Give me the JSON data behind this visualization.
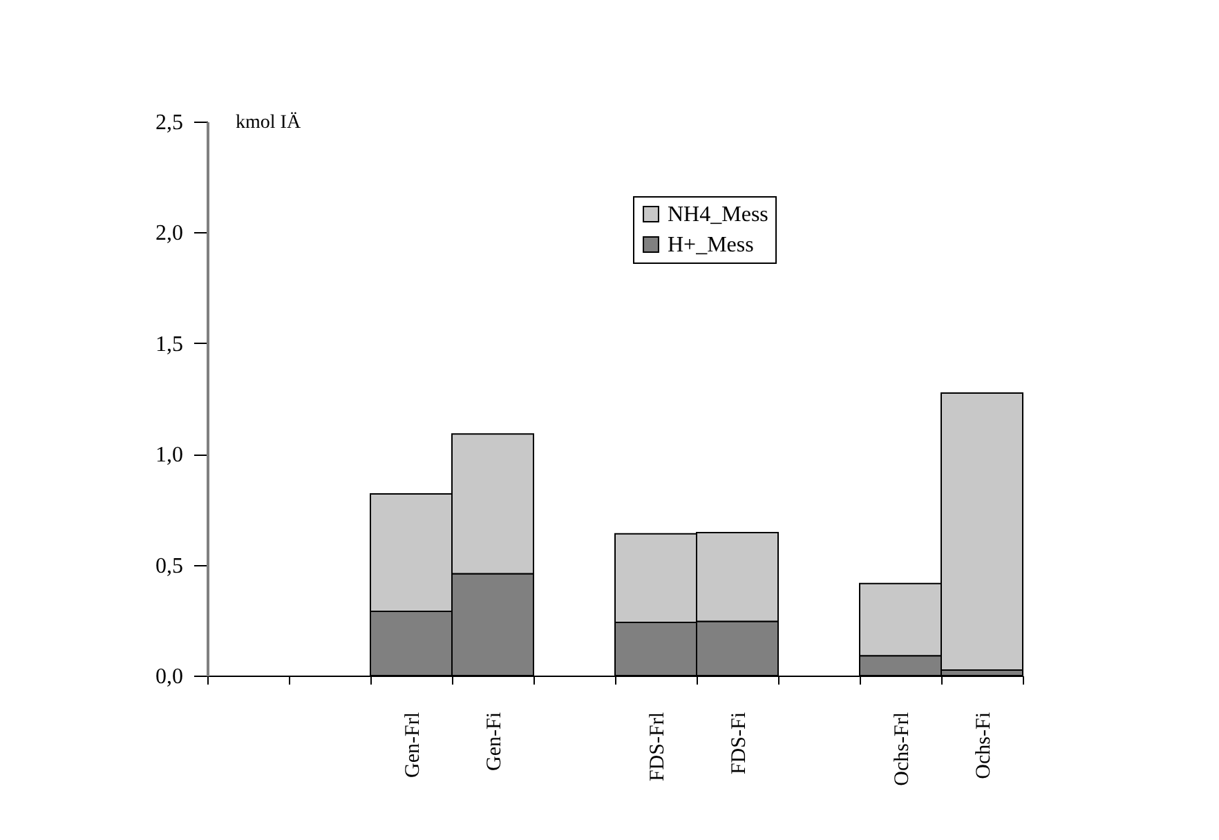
{
  "chart_data": {
    "type": "bar",
    "stacked": true,
    "ylabel": "kmol IÄ",
    "categories": [
      null,
      null,
      "Gen-Frl",
      "Gen-Fi",
      null,
      "FDS-Frl",
      "FDS-Fi",
      null,
      "Ochs-Frl",
      "Ochs-Fi"
    ],
    "series": [
      {
        "name": "H+_Mess",
        "color": "#808080",
        "values": [
          null,
          null,
          0.29,
          0.46,
          null,
          0.24,
          0.245,
          null,
          0.09,
          0.025
        ]
      },
      {
        "name": "NH4_Mess",
        "color": "#c8c8c8",
        "values": [
          null,
          null,
          0.53,
          0.63,
          null,
          0.4,
          0.4,
          null,
          0.325,
          1.25
        ]
      }
    ],
    "ylim": [
      0,
      2.5
    ],
    "yticks": [
      {
        "value": 0,
        "label": "0,0"
      },
      {
        "value": 0.5,
        "label": "0,5"
      },
      {
        "value": 1,
        "label": "1,0"
      },
      {
        "value": 1.5,
        "label": "1,5"
      },
      {
        "value": 2,
        "label": "2,0"
      },
      {
        "value": 2.5,
        "label": "2,5"
      }
    ],
    "legend": "top",
    "grid": false
  }
}
